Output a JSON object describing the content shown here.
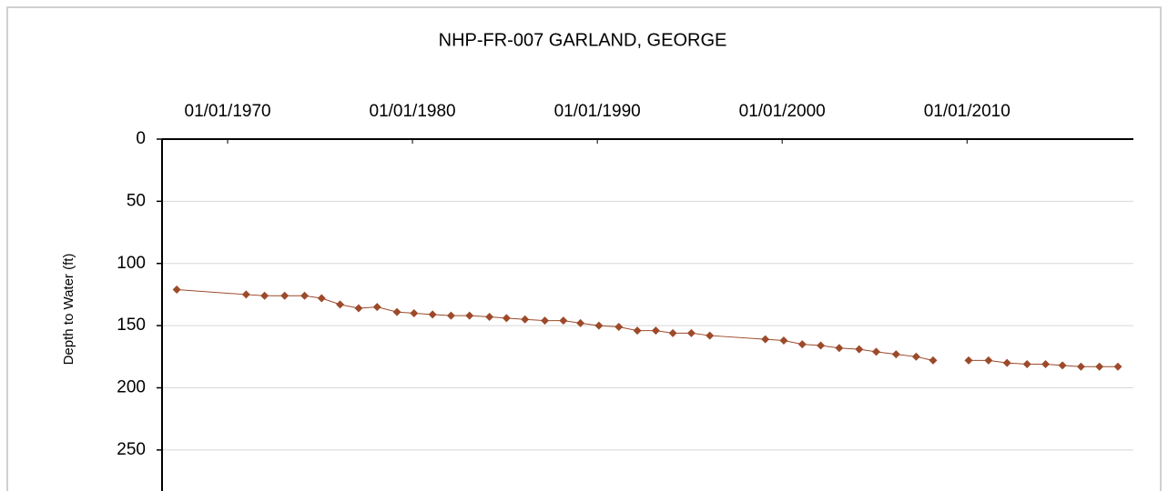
{
  "chart_data": {
    "type": "line",
    "title": "NHP-FR-007 GARLAND, GEORGE",
    "y_label": "Depth to Water (ft)",
    "y_inverted": true,
    "grid": true,
    "x": [
      "1967-04-01",
      "1971-01-01",
      "1972-01-01",
      "1973-02-01",
      "1974-03-01",
      "1975-02-01",
      "1976-02-01",
      "1977-02-01",
      "1978-02-01",
      "1979-03-01",
      "1980-02-01",
      "1981-02-01",
      "1982-02-01",
      "1983-02-01",
      "1984-03-01",
      "1985-02-01",
      "1986-02-01",
      "1987-03-01",
      "1988-03-01",
      "1989-02-01",
      "1990-02-01",
      "1991-03-01",
      "1992-03-01",
      "1993-03-01",
      "1994-02-01",
      "1995-02-01",
      "1996-02-01",
      "1999-02-01",
      "2000-02-01",
      "2001-02-01",
      "2002-02-01",
      "2003-02-01",
      "2004-03-01",
      "2005-02-01",
      "2006-03-01",
      "2007-04-01",
      "2008-03-01",
      "2009-03-01",
      "2010-02-01",
      "2011-03-01",
      "2012-03-01",
      "2013-04-01",
      "2014-04-01",
      "2015-03-01",
      "2016-03-01",
      "2017-03-01",
      "2018-03-01"
    ],
    "series": [
      {
        "name": "Depth to Water",
        "color": "#9c4a2a",
        "values": [
          121,
          125,
          126,
          126,
          126,
          128,
          133,
          136,
          135,
          139,
          140,
          141,
          142,
          142,
          143,
          144,
          145,
          146,
          146,
          148,
          150,
          151,
          154,
          154,
          156,
          156,
          158,
          161,
          162,
          165,
          166,
          168,
          169,
          171,
          173,
          175,
          178,
          null,
          178,
          178,
          180,
          181,
          181,
          182,
          183,
          183,
          183
        ]
      }
    ],
    "xlim": [
      "1966-06-15",
      "2019-01-01"
    ],
    "xticks": [
      {
        "value": "1970-01-01",
        "label": "01/01/1970"
      },
      {
        "value": "1980-01-01",
        "label": "01/01/1980"
      },
      {
        "value": "1990-01-01",
        "label": "01/01/1990"
      },
      {
        "value": "2000-01-01",
        "label": "01/01/2000"
      },
      {
        "value": "2010-01-01",
        "label": "01/01/2010"
      }
    ],
    "ylim": [
      0,
      283
    ],
    "yticks": [
      0,
      50,
      100,
      150,
      200,
      250
    ]
  }
}
